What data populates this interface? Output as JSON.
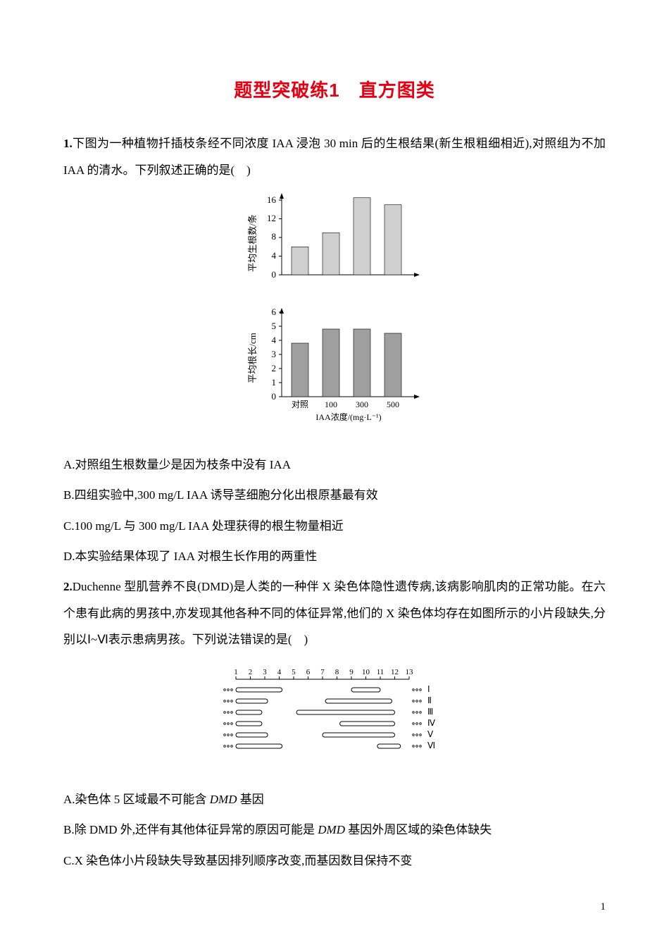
{
  "title": "题型突破练1　直方图类",
  "q1": {
    "num": "1.",
    "stem_a": "下图为一种植物扦插枝条经不同浓度 IAA 浸泡 30 min 后的生根结果(新生根粗细相近),对照组为不加 IAA 的清水。下列叙述正确的是(　)",
    "optA": "A.对照组生根数量少是因为枝条中没有 IAA",
    "optB": "B.四组实验中,300 mg/L IAA 诱导茎细胞分化出根原基最有效",
    "optC": "C.100 mg/L 与 300 mg/L IAA 处理获得的根生物量相近",
    "optD": "D.本实验结果体现了 IAA 对根生长作用的两重性"
  },
  "chart1": {
    "type": "bar",
    "ylabel": "平均生根数/条",
    "ylim": [
      0,
      16
    ],
    "ytick_step": 4,
    "yticks": [
      0,
      4,
      8,
      12,
      16
    ],
    "categories": [
      "对照",
      "100",
      "300",
      "500"
    ],
    "values": [
      6,
      9,
      16.5,
      15
    ],
    "bar_color": "#d0d0d0",
    "bar_width": 0.55
  },
  "chart2": {
    "type": "bar",
    "ylabel": "平均根长/cm",
    "xlabel": "IAA浓度/(mg·L⁻¹)",
    "ylim": [
      0,
      6
    ],
    "ytick_step": 1,
    "yticks": [
      0,
      1,
      2,
      3,
      4,
      5,
      6
    ],
    "categories": [
      "对照",
      "100",
      "300",
      "500"
    ],
    "values": [
      3.8,
      4.8,
      4.8,
      4.5
    ],
    "bar_color": "#a0a0a0",
    "bar_width": 0.55
  },
  "q2": {
    "num": "2.",
    "stem_a": "Duchenne 型肌营养不良(DMD)是人类的一种伴 X 染色体隐性遗传病,该病影响肌肉的正常功能。在六个患有此病的男孩中,亦发现其他各种不同的体征异常,他们的 X 染色体均存在如图所示的小片段缺失,分别以Ⅰ~Ⅵ表示患病男孩。下列说法错误的是(　)",
    "optA_pre": "A.染色体 5 区域最不可能含 ",
    "optA_ital": "DMD",
    "optA_post": " 基因",
    "optB_pre": "B.除 DMD 外,还伴有其他体征异常的原因可能是 ",
    "optB_ital": "DMD",
    "optB_post": " 基因外周区域的染色体缺失",
    "optC": "C.X 染色体小片段缺失导致基因排列顺序改变,而基因数目保持不变"
  },
  "diagram": {
    "type": "deletion-map",
    "scale": {
      "min": 1,
      "max": 13,
      "ticks": [
        1,
        2,
        3,
        4,
        5,
        6,
        7,
        8,
        9,
        10,
        11,
        12,
        13
      ]
    },
    "rows": [
      {
        "label": "Ⅰ",
        "segments": [
          [
            1,
            4.2
          ],
          [
            9.0,
            11.0
          ]
        ]
      },
      {
        "label": "Ⅱ",
        "segments": [
          [
            1,
            3.2
          ],
          [
            7.2,
            11.8
          ]
        ]
      },
      {
        "label": "Ⅲ",
        "segments": [
          [
            1,
            2.8
          ],
          [
            5.2,
            12.0
          ]
        ]
      },
      {
        "label": "Ⅳ",
        "segments": [
          [
            1,
            2.8
          ],
          [
            8.2,
            12.0
          ]
        ]
      },
      {
        "label": "Ⅴ",
        "segments": [
          [
            1,
            3.2
          ],
          [
            7.0,
            12.0
          ]
        ]
      },
      {
        "label": "Ⅵ",
        "segments": [
          [
            1,
            4.2
          ],
          [
            10.8,
            12.4
          ]
        ]
      }
    ],
    "colors": {
      "segment_fill": "#ffffff",
      "segment_stroke": "#000000"
    }
  },
  "page_number": "1"
}
